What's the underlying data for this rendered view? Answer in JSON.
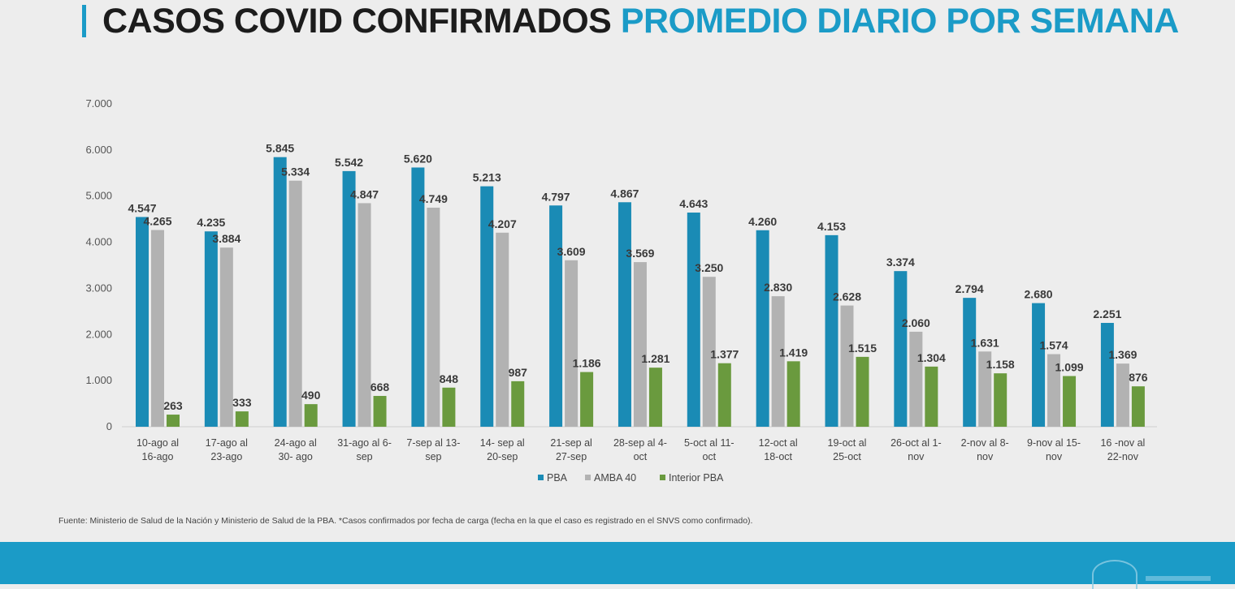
{
  "header": {
    "title_part1": "CASOS COVID CONFIRMADOS",
    "title_part2": "PROMEDIO DIARIO POR SEMANA"
  },
  "colors": {
    "accent": "#1b9bc7",
    "pba": "#1a8bb5",
    "amba": "#b2b2b2",
    "interior": "#6a9a3e"
  },
  "chart_data": {
    "type": "bar",
    "title": "CASOS COVID CONFIRMADOS PROMEDIO DIARIO POR SEMANA",
    "xlabel": "",
    "ylabel": "",
    "ylim": [
      0,
      7000
    ],
    "yticks": [
      0,
      1000,
      2000,
      3000,
      4000,
      5000,
      6000,
      7000
    ],
    "ytick_labels": [
      "0",
      "1.000",
      "2.000",
      "3.000",
      "4.000",
      "5.000",
      "6.000",
      "7.000"
    ],
    "grid": false,
    "legend_position": "bottom-center",
    "categories": [
      [
        "10-ago al",
        "16-ago"
      ],
      [
        "17-ago al",
        "23-ago"
      ],
      [
        "24-ago al",
        "30- ago"
      ],
      [
        "31-ago al 6-",
        "sep"
      ],
      [
        "7-sep al 13-",
        "sep"
      ],
      [
        "14- sep al",
        "20-sep"
      ],
      [
        "21-sep al",
        "27-sep"
      ],
      [
        "28-sep al 4-",
        "oct"
      ],
      [
        "5-oct al 11-",
        "oct"
      ],
      [
        "12-oct al",
        "18-oct"
      ],
      [
        "19-oct al",
        "25-oct"
      ],
      [
        "26-oct al 1-",
        "nov"
      ],
      [
        "2-nov al 8-",
        "nov"
      ],
      [
        "9-nov al 15-",
        "nov"
      ],
      [
        "16 -nov al",
        "22-nov"
      ]
    ],
    "series": [
      {
        "name": "PBA",
        "color": "#1a8bb5",
        "values": [
          4547,
          4235,
          5845,
          5542,
          5620,
          5213,
          4797,
          4867,
          4643,
          4260,
          4153,
          3374,
          2794,
          2680,
          2251
        ],
        "labels": [
          "4.547",
          "4.235",
          "5.845",
          "5.542",
          "5.620",
          "5.213",
          "4.797",
          "4.867",
          "4.643",
          "4.260",
          "4.153",
          "3.374",
          "2.794",
          "2.680",
          "2.251"
        ]
      },
      {
        "name": "AMBA 40",
        "color": "#b2b2b2",
        "values": [
          4265,
          3884,
          5334,
          4847,
          4749,
          4207,
          3609,
          3569,
          3250,
          2830,
          2628,
          2060,
          1631,
          1574,
          1369
        ],
        "labels": [
          "4.265",
          "3.884",
          "5.334",
          "4.847",
          "4.749",
          "4.207",
          "3.609",
          "3.569",
          "3.250",
          "2.830",
          "2.628",
          "2.060",
          "1.631",
          "1.574",
          "1.369"
        ]
      },
      {
        "name": "Interior PBA",
        "color": "#6a9a3e",
        "values": [
          263,
          333,
          490,
          668,
          848,
          987,
          1186,
          1281,
          1377,
          1419,
          1515,
          1304,
          1158,
          1099,
          876
        ],
        "labels": [
          "263",
          "333",
          "490",
          "668",
          "848",
          "987",
          "1.186",
          "1.281",
          "1.377",
          "1.419",
          "1.515",
          "1.304",
          "1.158",
          "1.099",
          "876"
        ]
      }
    ]
  },
  "source_note": "Fuente: Ministerio de Salud de la Nación y Ministerio de Salud de la PBA. *Casos confirmados por fecha de carga (fecha en la que el caso es registrado en el SNVS como confirmado)."
}
